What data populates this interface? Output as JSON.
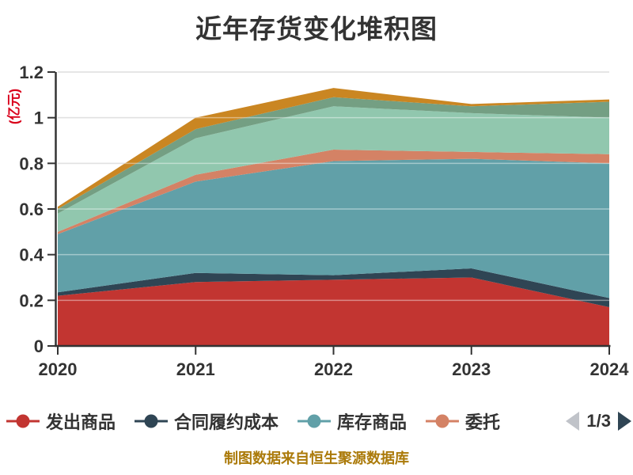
{
  "title": {
    "text": "近年存货变化堆积图",
    "color": "#333333"
  },
  "y_axis": {
    "name": "(亿元)",
    "name_color": "#d9001b",
    "ticks": [
      0,
      0.2,
      0.4,
      0.6,
      0.8,
      1,
      1.2
    ],
    "tick_labels": [
      "0",
      "0.2",
      "0.4",
      "0.6",
      "0.8",
      "1",
      "1.2"
    ],
    "max": 1.2
  },
  "x_axis": {
    "labels": [
      "2020",
      "2021",
      "2022",
      "2023",
      "2024"
    ]
  },
  "legend": {
    "items": [
      {
        "label": "发出商品",
        "color": "#c23531"
      },
      {
        "label": "合同履约成本",
        "color": "#2f4554"
      },
      {
        "label": "库存商品",
        "color": "#61a0a8"
      },
      {
        "label": "委托",
        "color": "#d48265"
      }
    ],
    "pager": {
      "text": "1/3",
      "prev_color": "#c0c3c9",
      "next_color": "#2f4554"
    }
  },
  "caption": {
    "text": "制图数据来自恒生聚源数据库",
    "color": "#ab7a0a"
  },
  "colors": {
    "grid_line": "#cccccc",
    "axis_line": "#333333",
    "tick_label": "#333333",
    "background": "#ffffff"
  },
  "chart_data": {
    "type": "area",
    "stacked": true,
    "title": "近年存货变化堆积图",
    "ylabel": "(亿元)",
    "ylim": [
      0,
      1.2
    ],
    "grid": true,
    "legend_position": "bottom",
    "legend_pages": "1/3",
    "x": [
      2020,
      2021,
      2022,
      2023,
      2024
    ],
    "series": [
      {
        "name": "发出商品",
        "color": "#c23531",
        "values": [
          0.22,
          0.28,
          0.29,
          0.3,
          0.17
        ]
      },
      {
        "name": "合同履约成本",
        "color": "#2f4554",
        "values": [
          0.015,
          0.04,
          0.02,
          0.04,
          0.04
        ]
      },
      {
        "name": "库存商品",
        "color": "#61a0a8",
        "values": [
          0.255,
          0.4,
          0.5,
          0.48,
          0.59
        ]
      },
      {
        "name": "委托",
        "color": "#d48265",
        "values": [
          0.01,
          0.03,
          0.05,
          0.03,
          0.04
        ]
      },
      {
        "name": "",
        "color": "#91c7ae",
        "values": [
          0.08,
          0.16,
          0.19,
          0.17,
          0.16
        ]
      },
      {
        "name": "",
        "color": "#749f83",
        "values": [
          0.02,
          0.04,
          0.04,
          0.03,
          0.07
        ]
      },
      {
        "name": "",
        "color": "#ca8622",
        "values": [
          0.01,
          0.05,
          0.04,
          0.01,
          0.01
        ]
      }
    ],
    "stack_totals": [
      0.61,
      1.0,
      1.13,
      1.06,
      1.08
    ]
  }
}
